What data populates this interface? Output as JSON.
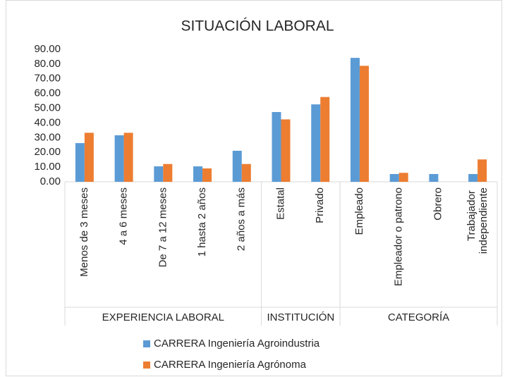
{
  "chart_data": {
    "type": "bar",
    "title": "SITUACIÓN LABORAL",
    "category_groups": [
      {
        "name": "EXPERIENCIA LABORAL",
        "categories": [
          "Menos de 3 meses",
          "4 a 6 meses",
          "De 7 a 12 meses",
          "1 hasta 2 años",
          "2 años a más"
        ]
      },
      {
        "name": "INSTITUCIÓN",
        "categories": [
          "Estatal",
          "Privado"
        ]
      },
      {
        "name": "CATEGORÍA",
        "categories": [
          "Empleado",
          "Empleador o patrono",
          "Obrero",
          "Trabajador independiente"
        ]
      }
    ],
    "series": [
      {
        "name": "CARRERA Ingeniería Agroindustria",
        "color": "#5b9bd5",
        "values": [
          26.3,
          31.6,
          10.5,
          10.5,
          21.1,
          47.4,
          52.6,
          84.2,
          5.3,
          5.3,
          5.3
        ]
      },
      {
        "name": "CARRERA Ingeniería Agrónoma",
        "color": "#ed7d31",
        "values": [
          33.3,
          33.3,
          12.1,
          9.1,
          12.1,
          42.4,
          57.6,
          78.8,
          6.1,
          0,
          15.2
        ]
      }
    ],
    "ylim": [
      0,
      90
    ],
    "yticks": [
      {
        "value": 0,
        "label": "0.00"
      },
      {
        "value": 10,
        "label": "10.00"
      },
      {
        "value": 20,
        "label": "20.00"
      },
      {
        "value": 30,
        "label": "30.00"
      },
      {
        "value": 40,
        "label": "40.00"
      },
      {
        "value": 50,
        "label": "50.00"
      },
      {
        "value": 60,
        "label": "60.00"
      },
      {
        "value": 70,
        "label": "70.00"
      },
      {
        "value": 80,
        "label": "80.00"
      },
      {
        "value": 90,
        "label": "90.00"
      }
    ],
    "grid": false
  }
}
